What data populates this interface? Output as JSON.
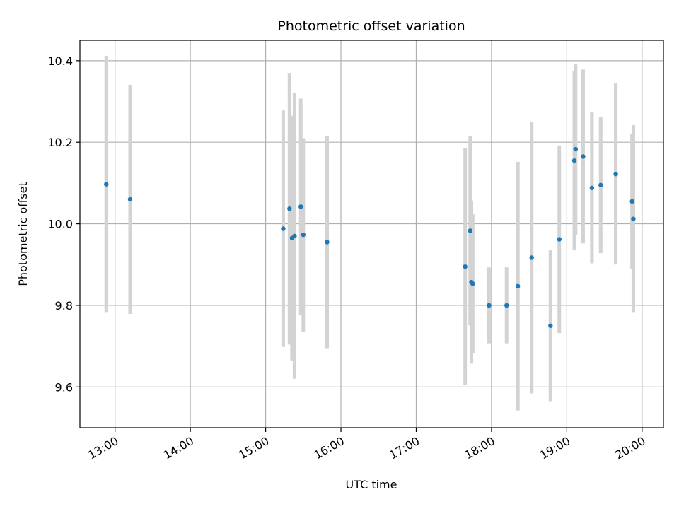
{
  "chart_data": {
    "type": "scatter",
    "title": "Photometric offset variation",
    "xlabel": "UTC time",
    "ylabel": "Photometric offset",
    "x_format": "HH:MM",
    "xlim": [
      "12:32",
      "20:17"
    ],
    "ylim": [
      9.5,
      10.45
    ],
    "x_ticks": [
      "13:00",
      "14:00",
      "15:00",
      "16:00",
      "17:00",
      "18:00",
      "19:00",
      "20:00"
    ],
    "y_ticks": [
      9.6,
      9.8,
      10.0,
      10.2,
      10.4
    ],
    "grid": true,
    "marker_color": "#1f77b4",
    "errorbar_color": "#d3d3d3",
    "points": [
      {
        "x": "12:53",
        "y": 10.097,
        "err": 0.315
      },
      {
        "x": "13:12",
        "y": 10.06,
        "err": 0.281
      },
      {
        "x": "15:14",
        "y": 9.988,
        "err": 0.29
      },
      {
        "x": "15:19",
        "y": 10.037,
        "err": 0.333
      },
      {
        "x": "15:21",
        "y": 9.965,
        "err": 0.3
      },
      {
        "x": "15:23",
        "y": 9.97,
        "err": 0.35
      },
      {
        "x": "15:28",
        "y": 10.042,
        "err": 0.265
      },
      {
        "x": "15:30",
        "y": 9.973,
        "err": 0.237
      },
      {
        "x": "15:49",
        "y": 9.955,
        "err": 0.26
      },
      {
        "x": "17:39",
        "y": 9.895,
        "err": 0.29
      },
      {
        "x": "17:43",
        "y": 9.983,
        "err": 0.232
      },
      {
        "x": "17:44",
        "y": 9.857,
        "err": 0.2
      },
      {
        "x": "17:45",
        "y": 9.853,
        "err": 0.17
      },
      {
        "x": "17:58",
        "y": 9.8,
        "err": 0.093
      },
      {
        "x": "18:12",
        "y": 9.8,
        "err": 0.093
      },
      {
        "x": "18:21",
        "y": 9.847,
        "err": 0.305
      },
      {
        "x": "18:32",
        "y": 9.917,
        "err": 0.333
      },
      {
        "x": "18:47",
        "y": 9.75,
        "err": 0.185
      },
      {
        "x": "18:54",
        "y": 9.962,
        "err": 0.23
      },
      {
        "x": "19:06",
        "y": 10.155,
        "err": 0.22
      },
      {
        "x": "19:07",
        "y": 10.183,
        "err": 0.21
      },
      {
        "x": "19:13",
        "y": 10.165,
        "err": 0.213
      },
      {
        "x": "19:20",
        "y": 10.088,
        "err": 0.185
      },
      {
        "x": "19:27",
        "y": 10.095,
        "err": 0.167
      },
      {
        "x": "19:39",
        "y": 10.122,
        "err": 0.222
      },
      {
        "x": "19:52",
        "y": 10.055,
        "err": 0.165
      },
      {
        "x": "19:53",
        "y": 10.012,
        "err": 0.23
      }
    ]
  }
}
